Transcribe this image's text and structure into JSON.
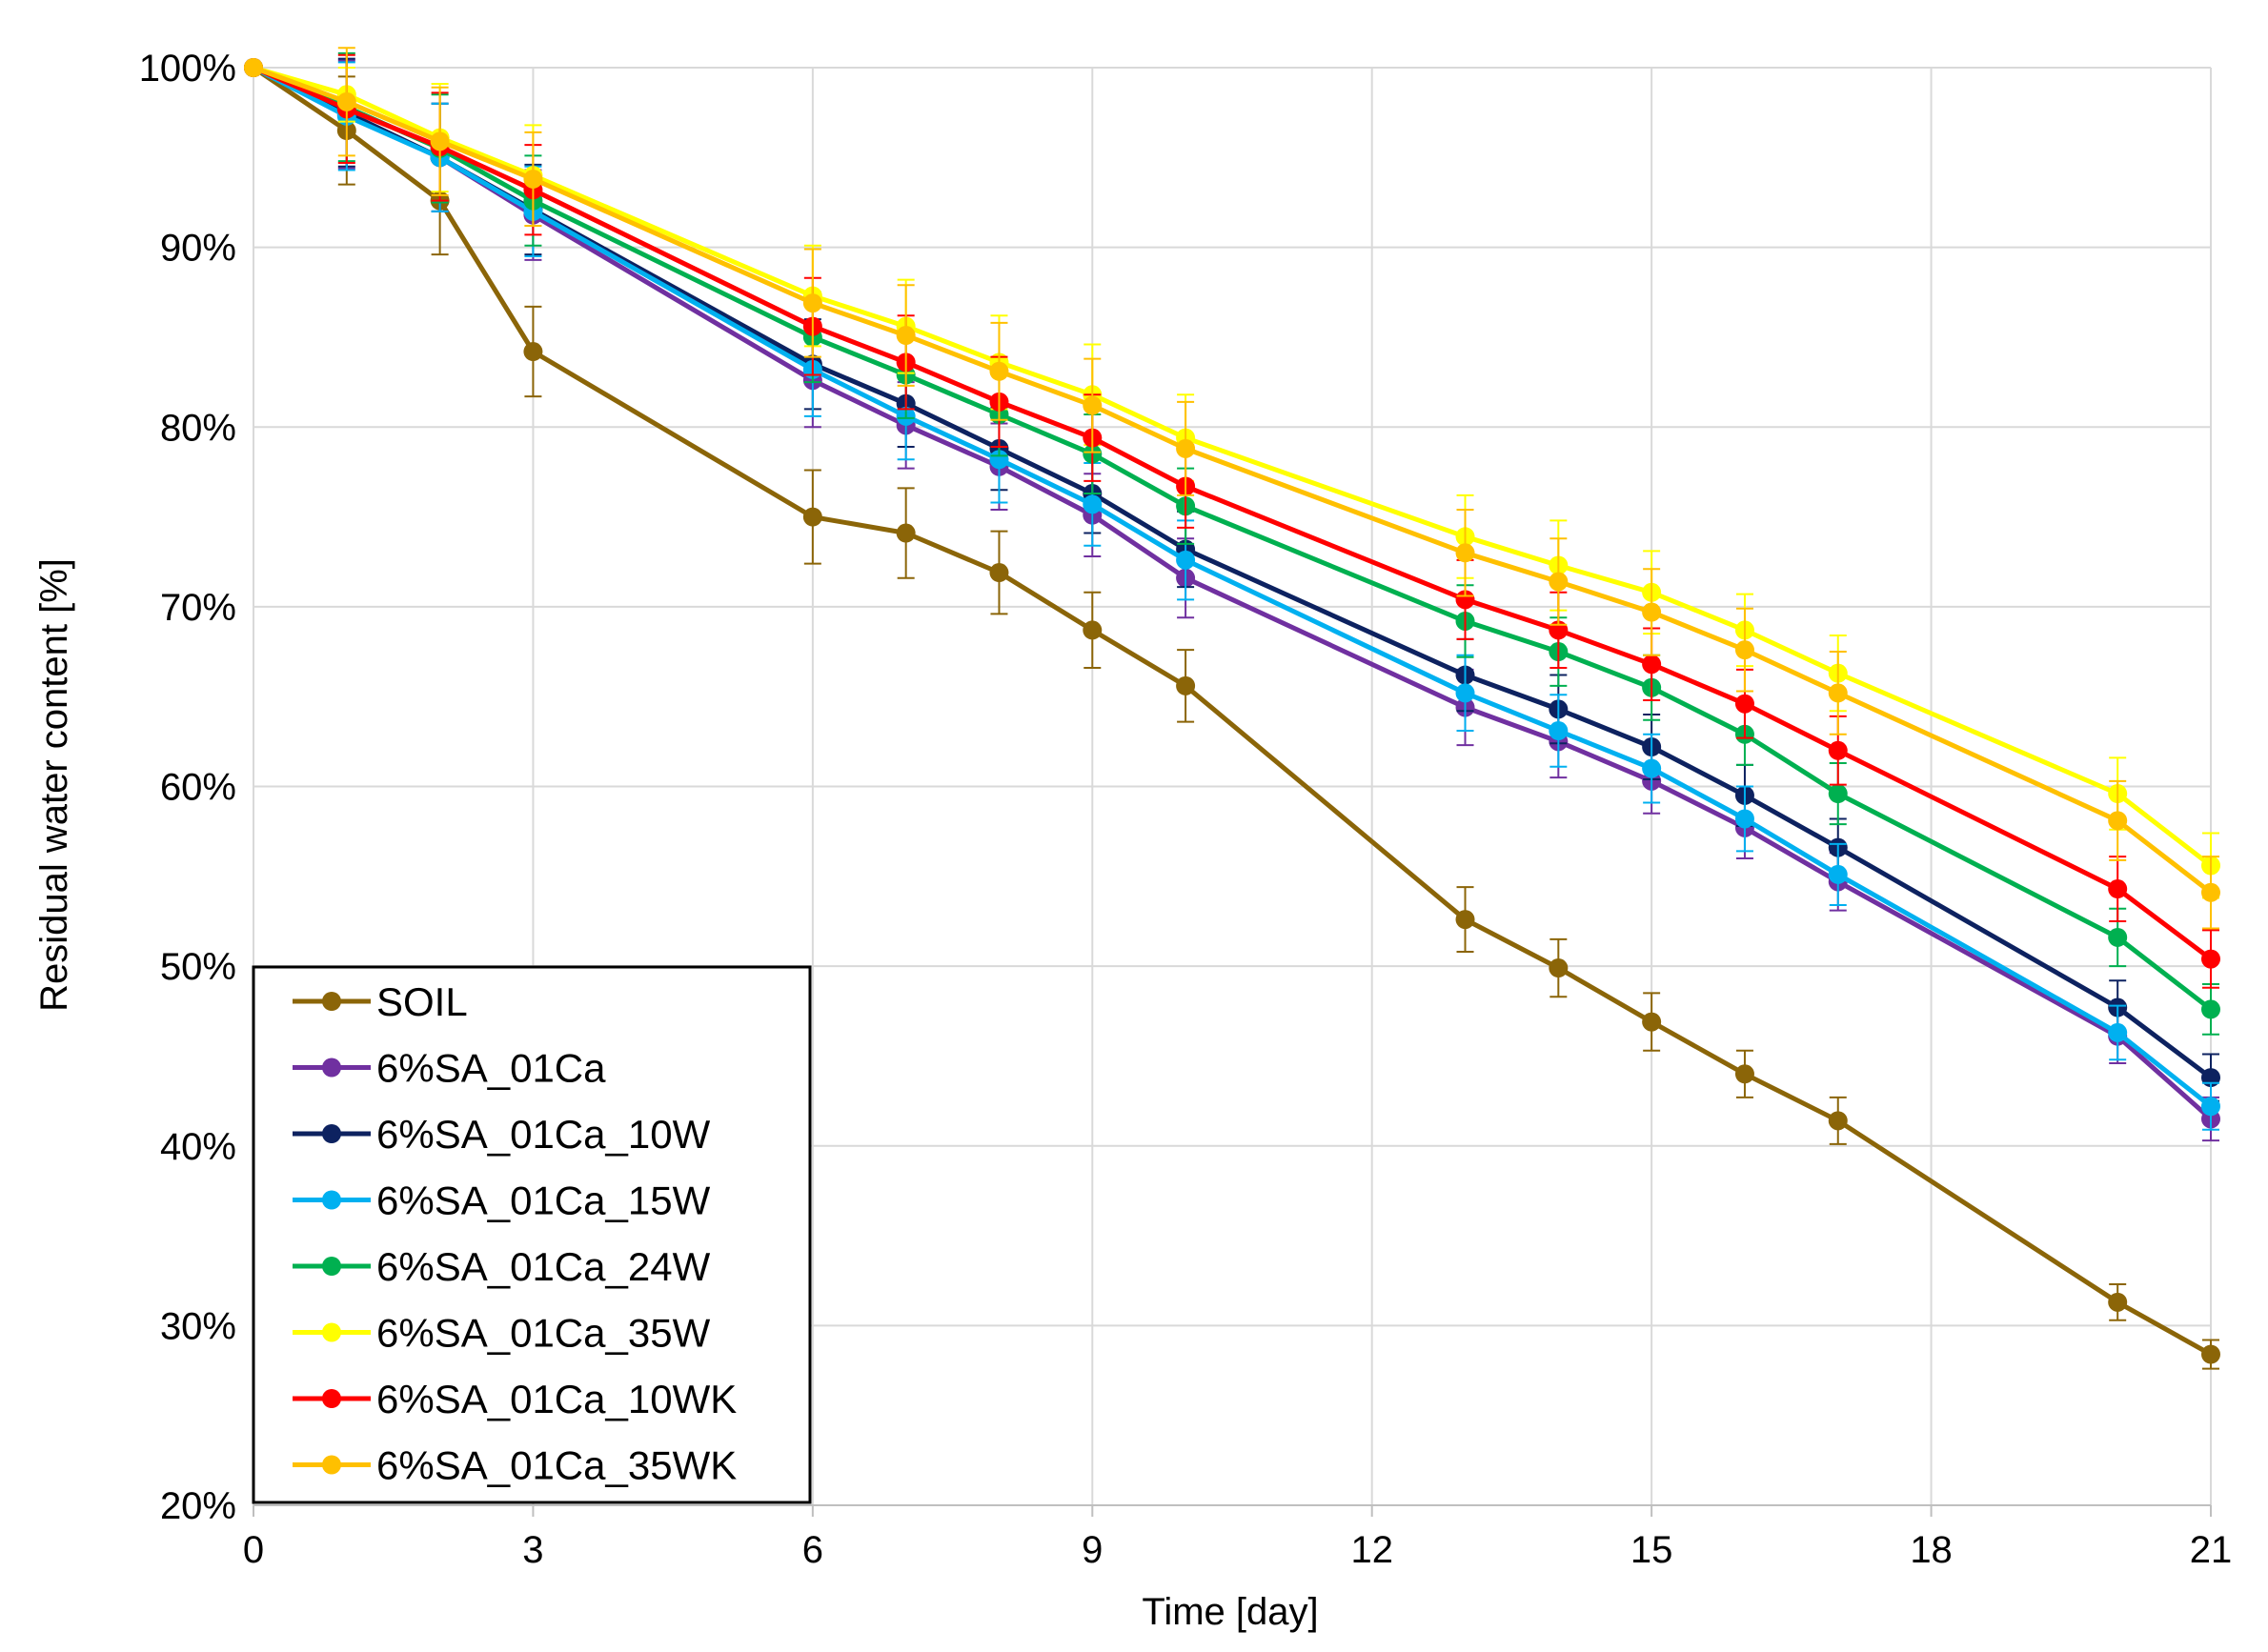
{
  "chart_data": {
    "type": "line",
    "title": "",
    "xlabel": "Time [day]",
    "ylabel": "Residual water content [%]",
    "xlim": [
      0,
      21
    ],
    "ylim": [
      20,
      100
    ],
    "x_ticks": [
      0,
      3,
      6,
      9,
      12,
      15,
      18,
      21
    ],
    "x_tick_labels": [
      "0",
      "3",
      "6",
      "9",
      "12",
      "15",
      "18",
      "21"
    ],
    "y_ticks": [
      20,
      30,
      40,
      50,
      60,
      70,
      80,
      90,
      100
    ],
    "y_tick_labels": [
      "20%",
      "30%",
      "40%",
      "50%",
      "60%",
      "70%",
      "80%",
      "90%",
      "100%"
    ],
    "grid": true,
    "legend_position": "bottom-left",
    "x": [
      0,
      1,
      2,
      3,
      6,
      7,
      8,
      9,
      10,
      13,
      14,
      15,
      16,
      17,
      20,
      21
    ],
    "series": [
      {
        "name": "SOIL",
        "color": "#8B6508",
        "values": [
          100,
          96.5,
          92.6,
          84.2,
          75.0,
          74.1,
          71.9,
          68.7,
          65.6,
          52.6,
          49.9,
          46.9,
          44.0,
          41.4,
          31.3,
          28.4
        ],
        "errors": [
          0,
          3.0,
          3.0,
          2.5,
          2.6,
          2.5,
          2.3,
          2.1,
          2.0,
          1.8,
          1.6,
          1.6,
          1.3,
          1.3,
          1.0,
          0.8
        ]
      },
      {
        "name": "6%SA_01Ca",
        "color": "#7030A0",
        "values": [
          100,
          97.4,
          95.0,
          91.8,
          82.6,
          80.1,
          77.8,
          75.1,
          71.6,
          64.4,
          62.5,
          60.3,
          57.7,
          54.7,
          46.1,
          41.5
        ],
        "errors": [
          0,
          3.0,
          3.0,
          2.5,
          2.6,
          2.4,
          2.4,
          2.3,
          2.2,
          2.1,
          2.0,
          1.8,
          1.7,
          1.6,
          1.5,
          1.2
        ]
      },
      {
        "name": "6%SA_01Ca_10W",
        "color": "#0D2260",
        "values": [
          100,
          97.5,
          95.0,
          92.1,
          83.5,
          81.3,
          78.8,
          76.3,
          73.2,
          66.2,
          64.3,
          62.2,
          59.5,
          56.6,
          47.7,
          43.8
        ],
        "errors": [
          0,
          3.0,
          3.0,
          2.5,
          2.5,
          2.4,
          2.3,
          2.2,
          2.1,
          2.0,
          1.9,
          1.8,
          1.7,
          1.6,
          1.5,
          1.3
        ]
      },
      {
        "name": "6%SA_01Ca_15W",
        "color": "#00B0F0",
        "values": [
          100,
          97.3,
          95.0,
          92.0,
          83.2,
          80.6,
          78.2,
          75.7,
          72.6,
          65.2,
          63.1,
          61.0,
          58.2,
          55.1,
          46.3,
          42.2
        ],
        "errors": [
          0,
          3.0,
          3.0,
          2.5,
          2.6,
          2.4,
          2.4,
          2.3,
          2.2,
          2.1,
          2.0,
          1.9,
          1.8,
          1.7,
          1.5,
          1.3
        ]
      },
      {
        "name": "6%SA_01Ca_24W",
        "color": "#00B050",
        "values": [
          100,
          97.8,
          95.5,
          92.6,
          85.0,
          82.9,
          80.7,
          78.5,
          75.6,
          69.2,
          67.5,
          65.5,
          62.9,
          59.6,
          51.6,
          47.6
        ],
        "errors": [
          0,
          3.0,
          3.0,
          2.5,
          2.5,
          2.4,
          2.3,
          2.2,
          2.1,
          2.0,
          1.9,
          1.8,
          1.7,
          1.7,
          1.6,
          1.4
        ]
      },
      {
        "name": "6%SA_01Ca_35W",
        "color": "#FFFF00",
        "values": [
          100,
          98.5,
          96.1,
          94.0,
          87.3,
          85.6,
          83.6,
          81.8,
          79.4,
          73.9,
          72.3,
          70.8,
          68.7,
          66.3,
          59.6,
          55.6
        ],
        "errors": [
          0,
          1.5,
          3.0,
          2.8,
          2.8,
          2.6,
          2.6,
          2.8,
          2.4,
          2.3,
          2.5,
          2.3,
          2.0,
          2.1,
          2.0,
          1.8
        ]
      },
      {
        "name": "6%SA_01Ca_10WK",
        "color": "#FF0000",
        "values": [
          100,
          97.7,
          95.6,
          93.2,
          85.6,
          83.6,
          81.4,
          79.4,
          76.7,
          70.4,
          68.7,
          66.8,
          64.6,
          62.0,
          54.3,
          50.4
        ],
        "errors": [
          0,
          3.0,
          3.0,
          2.5,
          2.7,
          2.6,
          2.5,
          2.4,
          2.3,
          2.2,
          2.1,
          2.0,
          1.9,
          1.9,
          1.8,
          1.6
        ]
      },
      {
        "name": "6%SA_01Ca_35WK",
        "color": "#FFC000",
        "values": [
          100,
          98.1,
          95.9,
          93.8,
          86.9,
          85.1,
          83.1,
          81.2,
          78.8,
          73.0,
          71.4,
          69.7,
          67.6,
          65.2,
          58.1,
          54.1
        ],
        "errors": [
          0,
          3.0,
          3.0,
          2.6,
          3.0,
          2.8,
          2.7,
          2.6,
          2.6,
          2.4,
          2.4,
          2.4,
          2.3,
          2.3,
          2.2,
          2.0
        ]
      }
    ]
  }
}
